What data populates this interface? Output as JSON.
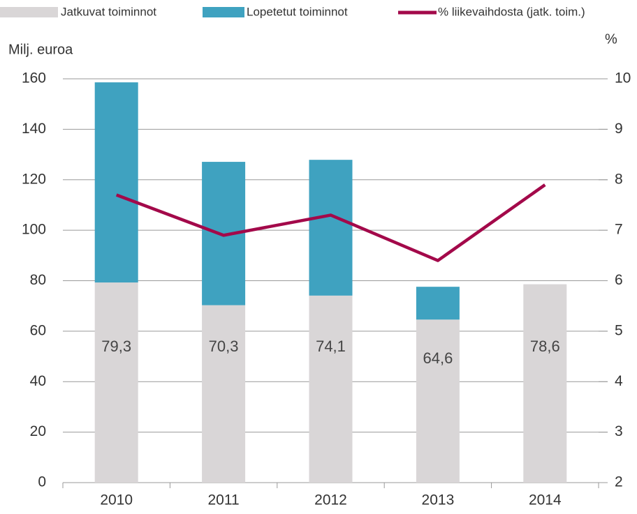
{
  "chart_data": {
    "type": "bar_line",
    "categories": [
      "2010",
      "2011",
      "2012",
      "2013",
      "2014"
    ],
    "series": [
      {
        "name": "Jatkuvat toiminnot",
        "color": "#d9d6d7",
        "values": [
          79.3,
          70.3,
          74.1,
          64.6,
          78.6
        ],
        "value_labels": [
          "79,3",
          "70,3",
          "74,1",
          "64,6",
          "78,6"
        ]
      },
      {
        "name": "Lopetetut toiminnot",
        "color": "#3fa2c0",
        "values": [
          79.3,
          56.8,
          53.8,
          13.0,
          0
        ]
      },
      {
        "name": "% liikevaihdosta (jatk. toim.)",
        "color": "#a3094a",
        "axis": "y2",
        "values": [
          7.7,
          6.9,
          7.3,
          6.4,
          7.9
        ]
      }
    ],
    "ylabel": "Milj. euroa",
    "y2label": "%",
    "ylim": [
      0,
      160
    ],
    "yticks": [
      0,
      20,
      40,
      60,
      80,
      100,
      120,
      140,
      160
    ],
    "y2lim": [
      2,
      10
    ],
    "y2ticks": [
      2,
      3,
      4,
      5,
      6,
      7,
      8,
      9,
      10
    ],
    "grid": true,
    "legend": "top"
  }
}
